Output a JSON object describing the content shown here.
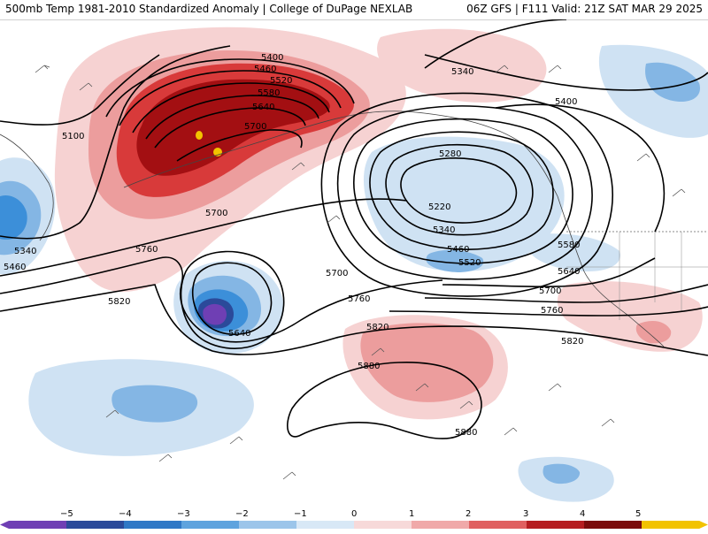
{
  "header": {
    "left_title": "500mb Temp 1981-2010 Standardized Anomaly | College of DuPage NEXLAB",
    "right_title": "06Z GFS | F111 Valid: 21Z SAT MAR 29 2025"
  },
  "map": {
    "field": "500mb temperature standardized anomaly",
    "contour_field": "500mb geopotential height",
    "contour_labels": [
      "5400",
      "5460",
      "5520",
      "5580",
      "5640",
      "5700",
      "5100",
      "5700",
      "5760",
      "5820",
      "5640",
      "5700",
      "5760",
      "5820",
      "5880",
      "5880",
      "5280",
      "5220",
      "5340",
      "5460",
      "5520",
      "5580",
      "5640",
      "5700",
      "5760",
      "5820",
      "5340",
      "5400",
      "5340",
      "5460"
    ],
    "colors": {
      "neg5": "#6f3fb4",
      "neg4": "#2b4a9a",
      "neg3": "#3c8fd9",
      "neg2": "#84b6e4",
      "neg1": "#cfe2f3",
      "pos1": "#f6d2d2",
      "pos2": "#ec9d9d",
      "pos3": "#d83a3a",
      "pos4": "#a30f12",
      "pos5": "#f2c300"
    }
  },
  "colorbar": {
    "ticks": [
      "−5",
      "−4",
      "−3",
      "−2",
      "−1",
      "0",
      "1",
      "2",
      "3",
      "4",
      "5"
    ],
    "colors": [
      "#6f3fb4",
      "#2b4a9a",
      "#2f78c6",
      "#5ea3de",
      "#9cc5ea",
      "#d8e8f6",
      "#f7d9d9",
      "#f0a9a9",
      "#e06060",
      "#b51d20",
      "#7a0b0b",
      "#f2c300"
    ]
  }
}
